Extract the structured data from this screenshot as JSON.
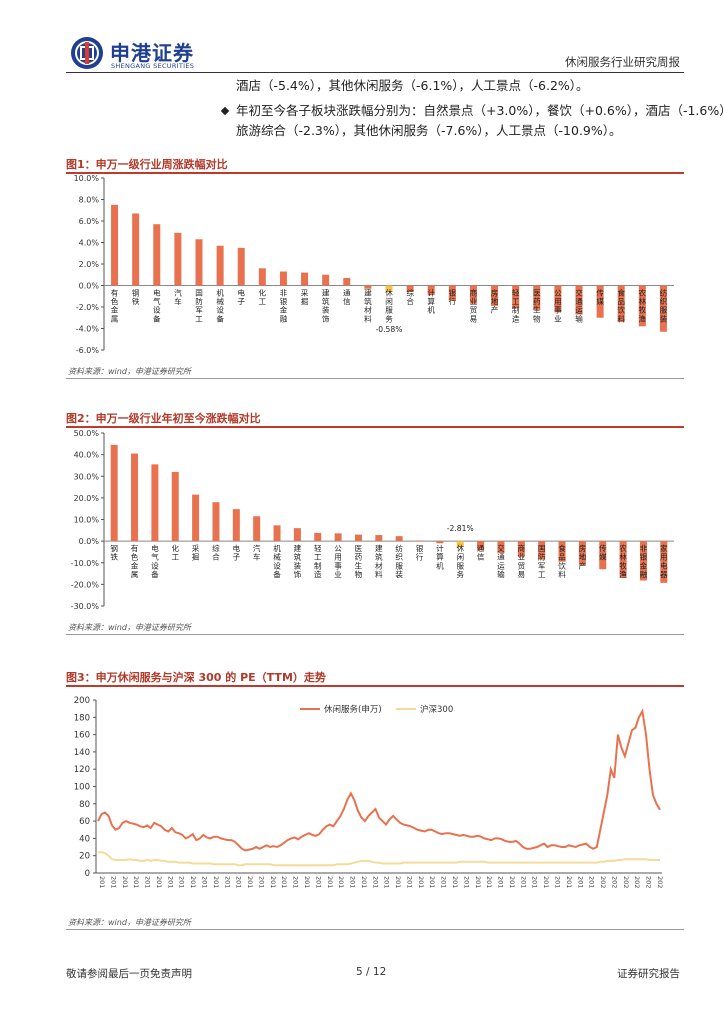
{
  "header": {
    "company_cn": "申港证券",
    "company_en": "SHENGANG SECURITIES",
    "report_type": "休闲服务行业研究周报"
  },
  "text": {
    "line1": "酒店（-5.4%），其他休闲服务（-6.1%），人工景点（-6.2%）。",
    "bullet_line1": "年初至今各子板块涨跌幅分别为：自然景点（+3.0%），餐饮（+0.6%），酒店（-1.6%），",
    "bullet_line2": "旅游综合（-2.3%），其他休闲服务（-7.6%），人工景点（-10.9%）。"
  },
  "figures": {
    "fig1_title": "图1：申万一级行业周涨跌幅对比",
    "fig1_source": "资料来源：wind，申港证券研究所",
    "fig2_title": "图2：申万一级行业年初至今涨跌幅对比",
    "fig2_source": "资料来源：wind，申港证券研究所",
    "fig3_title": "图3：申万休闲服务与沪深 300 的 PE（TTM）走势",
    "fig3_source": "资料来源：wind，申港证券研究所"
  },
  "footer": {
    "left": "敬请参阅最后一页免责声明",
    "page": "5 / 12",
    "right": "证券研究报告"
  },
  "colors": {
    "bar": "#e8724f",
    "highlight": "#f5c242",
    "pe_line": "#e8724f",
    "hs300_line": "#f3dc9a",
    "title_red": "#b23a2a"
  },
  "chart_data": [
    {
      "type": "bar",
      "title": "图1：申万一级行业周涨跌幅对比",
      "ylim": [
        -6,
        10
      ],
      "yticks": [
        "10.0%",
        "8.0%",
        "6.0%",
        "4.0%",
        "2.0%",
        "0.0%",
        "-2.0%",
        "-4.0%",
        "-6.0%"
      ],
      "categories": [
        "有色金属",
        "钢铁",
        "电气设备",
        "汽车",
        "国防军工",
        "机械设备",
        "电子",
        "化工",
        "非银金融",
        "采掘",
        "建筑装饰",
        "通信",
        "建筑材料",
        "休闲服务",
        "综合",
        "计算机",
        "银行",
        "商业贸易",
        "房地产",
        "轻工制造",
        "医药生物",
        "公用事业",
        "交通运输",
        "传媒",
        "食品饮料",
        "农林牧渔",
        "纺织服装"
      ],
      "values": [
        7.5,
        6.7,
        5.7,
        4.9,
        4.3,
        3.7,
        3.5,
        1.6,
        1.3,
        1.2,
        1.0,
        0.7,
        -0.3,
        -0.58,
        -0.6,
        -0.9,
        -1.4,
        -1.7,
        -1.9,
        -2.1,
        -2.3,
        -2.5,
        -2.7,
        -3.0,
        -3.4,
        -3.8,
        -4.3
      ],
      "highlight_index": 13,
      "highlight_label": "-0.58%"
    },
    {
      "type": "bar",
      "title": "图2：申万一级行业年初至今涨跌幅对比",
      "ylim": [
        -30,
        50
      ],
      "yticks": [
        "50.0%",
        "40.0%",
        "30.0%",
        "20.0%",
        "10.0%",
        "0.0%",
        "-10.0%",
        "-20.0%",
        "-30.0%"
      ],
      "categories": [
        "钢铁",
        "有色金属",
        "电气设备",
        "化工",
        "采掘",
        "综合",
        "电子",
        "汽车",
        "机械设备",
        "建筑装饰",
        "轻工制造",
        "公用事业",
        "医药生物",
        "建筑材料",
        "纺织服装",
        "银行",
        "计算机",
        "休闲服务",
        "通信",
        "交通运输",
        "商业贸易",
        "国防军工",
        "食品饮料",
        "房地产",
        "传媒",
        "农林牧渔",
        "非银金融",
        "家用电器"
      ],
      "values": [
        44.5,
        40.5,
        35.5,
        32.0,
        21.5,
        18.0,
        14.8,
        11.5,
        7.3,
        6.0,
        3.8,
        3.6,
        3.0,
        2.8,
        2.3,
        0.3,
        -1.0,
        -2.81,
        -4.2,
        -5.5,
        -7.2,
        -8.5,
        -9.5,
        -11.0,
        -13.0,
        -17.0,
        -18.2,
        -19.3
      ],
      "highlight_index": 17,
      "highlight_label": "-2.81%"
    },
    {
      "type": "line",
      "title": "图3：申万休闲服务与沪深 300 的 PE（TTM）走势",
      "ylim": [
        0,
        200
      ],
      "yticks": [
        "200",
        "180",
        "160",
        "140",
        "120",
        "100",
        "80",
        "60",
        "40",
        "20",
        "0"
      ],
      "xtick_label": "201",
      "xtick_label_late": "202",
      "xtick_count": 50,
      "xtick_late_from": 44,
      "legend": [
        "休闲服务(申万)",
        "沪深300"
      ],
      "series": [
        {
          "name": "休闲服务(申万)",
          "values": [
            60,
            68,
            70,
            66,
            55,
            50,
            52,
            58,
            60,
            58,
            57,
            56,
            54,
            53,
            55,
            52,
            58,
            56,
            54,
            50,
            48,
            52,
            47,
            46,
            44,
            40,
            42,
            45,
            38,
            40,
            44,
            41,
            40,
            42,
            42,
            40,
            39,
            38,
            38,
            36,
            32,
            28,
            26,
            27,
            28,
            30,
            28,
            30,
            32,
            30,
            31,
            30,
            32,
            35,
            38,
            40,
            41,
            39,
            42,
            44,
            46,
            44,
            43,
            45,
            50,
            54,
            56,
            54,
            60,
            66,
            74,
            85,
            92,
            84,
            72,
            64,
            60,
            66,
            70,
            74,
            64,
            60,
            56,
            62,
            66,
            62,
            58,
            56,
            55,
            54,
            52,
            50,
            49,
            48,
            50,
            50,
            48,
            46,
            45,
            46,
            46,
            45,
            44,
            43,
            44,
            43,
            42,
            42,
            43,
            42,
            40,
            39,
            38,
            40,
            40,
            39,
            37,
            36,
            36,
            37,
            34,
            30,
            28,
            28,
            29,
            30,
            32,
            34,
            30,
            32,
            32,
            31,
            30,
            30,
            32,
            31,
            30,
            32,
            33,
            34,
            30,
            28,
            30,
            50,
            70,
            90,
            120,
            110,
            160,
            145,
            135,
            150,
            165,
            168,
            180,
            187,
            160,
            120,
            90,
            80,
            73
          ]
        },
        {
          "name": "沪深300",
          "values": [
            24,
            24,
            23,
            20,
            16,
            15,
            15,
            15,
            15,
            16,
            15,
            15,
            14,
            14,
            15,
            14,
            15,
            15,
            14,
            14,
            13,
            13,
            13,
            12,
            12,
            12,
            12,
            11,
            11,
            11,
            11,
            11,
            11,
            10,
            10,
            10,
            10,
            10,
            10,
            10,
            9,
            9,
            10,
            10,
            10,
            10,
            10,
            10,
            10,
            10,
            9,
            9,
            9,
            9,
            9,
            9,
            9,
            9,
            9,
            9,
            9,
            9,
            9,
            9,
            9,
            9,
            9,
            9,
            10,
            10,
            10,
            10,
            11,
            12,
            13,
            14,
            14,
            14,
            13,
            12,
            12,
            11,
            11,
            11,
            11,
            11,
            11,
            12,
            12,
            12,
            12,
            12,
            12,
            12,
            12,
            12,
            12,
            12,
            12,
            12,
            12,
            12,
            12,
            13,
            13,
            13,
            13,
            13,
            13,
            13,
            13,
            12,
            12,
            12,
            12,
            12,
            12,
            12,
            12,
            12,
            12,
            12,
            12,
            12,
            12,
            12,
            12,
            12,
            12,
            12,
            12,
            12,
            12,
            12,
            12,
            12,
            12,
            12,
            12,
            12,
            12,
            12,
            12,
            13,
            13,
            14,
            14,
            14,
            15,
            15,
            16,
            16,
            16,
            16,
            16,
            16,
            16,
            15,
            15,
            15,
            15
          ]
        }
      ]
    }
  ]
}
